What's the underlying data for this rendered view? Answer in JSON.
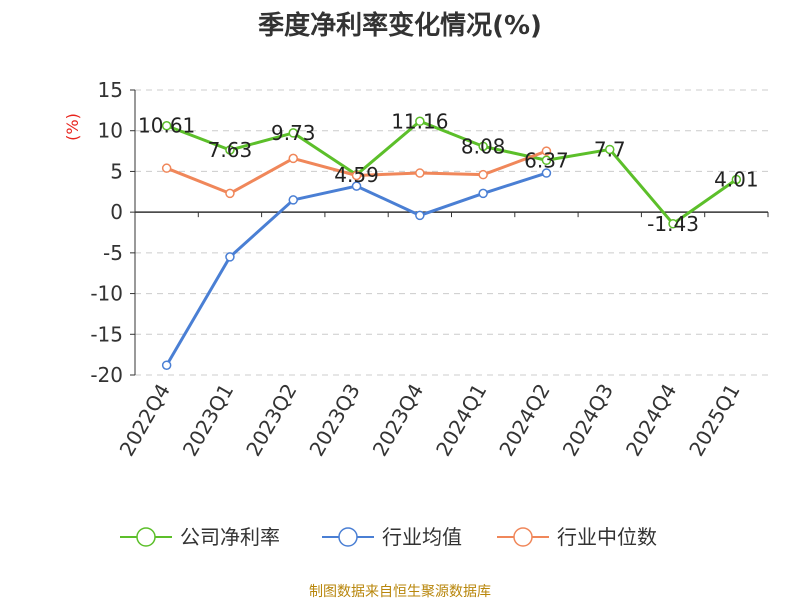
{
  "chart_data": {
    "type": "line",
    "title": "季度净利率变化情况(%)",
    "ylabel": "(%)",
    "xlabel": "",
    "ylim": [
      -20,
      15
    ],
    "yticks": [
      15,
      10,
      5,
      0,
      -5,
      -10,
      -15,
      -20
    ],
    "grid": true,
    "legend_position": "bottom",
    "categories": [
      "2022Q4",
      "2023Q1",
      "2023Q2",
      "2023Q3",
      "2023Q4",
      "2024Q1",
      "2024Q2",
      "2024Q3",
      "2024Q4",
      "2025Q1"
    ],
    "series": [
      {
        "name": "公司净利率",
        "color": "#5cbf2a",
        "values": [
          10.61,
          7.63,
          9.73,
          4.59,
          11.16,
          8.08,
          6.37,
          7.7,
          -1.43,
          4.01
        ],
        "labels": [
          "10.61",
          "7.63",
          "9.73",
          "4.59",
          "11.16",
          "8.08",
          "6.37",
          "7.7",
          "-1.43",
          "4.01"
        ]
      },
      {
        "name": "行业均值",
        "color": "#4a7fd4",
        "values": [
          -18.8,
          -5.5,
          1.5,
          3.2,
          -0.4,
          2.3,
          4.8,
          null,
          null,
          null
        ]
      },
      {
        "name": "行业中位数",
        "color": "#f0875a",
        "values": [
          5.4,
          2.3,
          6.6,
          4.5,
          4.8,
          4.6,
          7.5,
          null,
          null,
          null
        ]
      }
    ]
  },
  "footer": {
    "source": "制图数据来自恒生聚源数据库"
  }
}
